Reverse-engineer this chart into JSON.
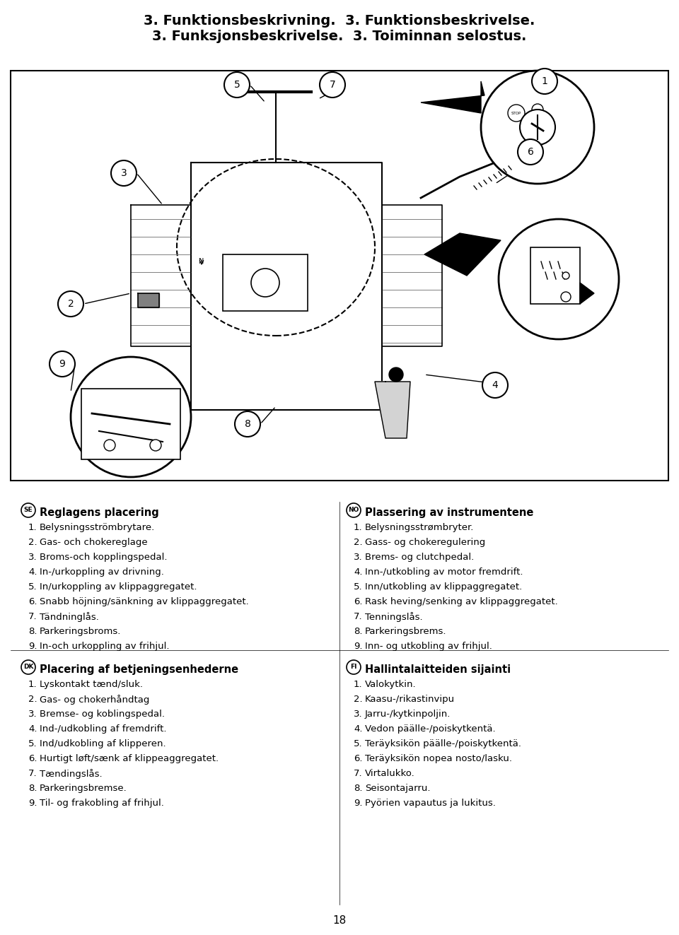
{
  "title_line1": "3. Funktionsbeskrivning.  3. Funktionsbeskrivelse.",
  "title_line2": "3. Funksjonsbeskrivelse.  3. Toiminnan selostus.",
  "page_number": "18",
  "background_color": "#ffffff",
  "text_color": "#000000",
  "sections": [
    {
      "lang_code": "SE",
      "heading": "Reglagens placering",
      "items": [
        "Belysningsströmbrytare.",
        "Gas- och chokereglage",
        "Broms-och kopplingspedal.",
        "In-/urkoppling av drivning.",
        "In/urkoppling av klippaggregatet.",
        "Snabb höjning/sänkning av klippaggregatet.",
        "Tändninglås.",
        "Parkeringsbroms.",
        "In-och urkoppling av frihjul."
      ]
    },
    {
      "lang_code": "NO",
      "heading": "Plassering av instrumentene",
      "items": [
        "Belysningsstrømbryter.",
        "Gass- og chokeregulering",
        "Brems- og clutchpedal.",
        "Inn-/utkobling av motor fremdrift.",
        "Inn/utkobling av klippaggregatet.",
        "Rask heving/senking av klippaggregatet.",
        "Tenningslås.",
        "Parkeringsbrems.",
        "Inn- og utkobling av frihjul."
      ]
    },
    {
      "lang_code": "DK",
      "heading": "Placering af betjeningsenhederne",
      "items": [
        "Lyskontakt tænd/sluk.",
        "Gas- og chokerhåndtag",
        "Bremse- og koblingspedal.",
        "Ind-/udkobling af fremdrift.",
        "Ind/udkobling af klipperen.",
        "Hurtigt løft/sænk af klippeaggregatet.",
        "Tændingslås.",
        "Parkeringsbremse.",
        "Til- og frakobling af frihjul."
      ]
    },
    {
      "lang_code": "FI",
      "heading": "Hallintalaitteiden sijainti",
      "items": [
        "Valokytkin.",
        "Kaasu-/rikastinvipu",
        "Jarru-/kytkinpoljin.",
        "Vedon päälle-/poiskytkentä.",
        "Teräyksikön päälle-/poiskytkentä.",
        "Teräyksikön nopea nosto/lasku.",
        "Virtalukko.",
        "Seisontajarru.",
        "Pyörien vapautus ja lukitus."
      ]
    }
  ]
}
